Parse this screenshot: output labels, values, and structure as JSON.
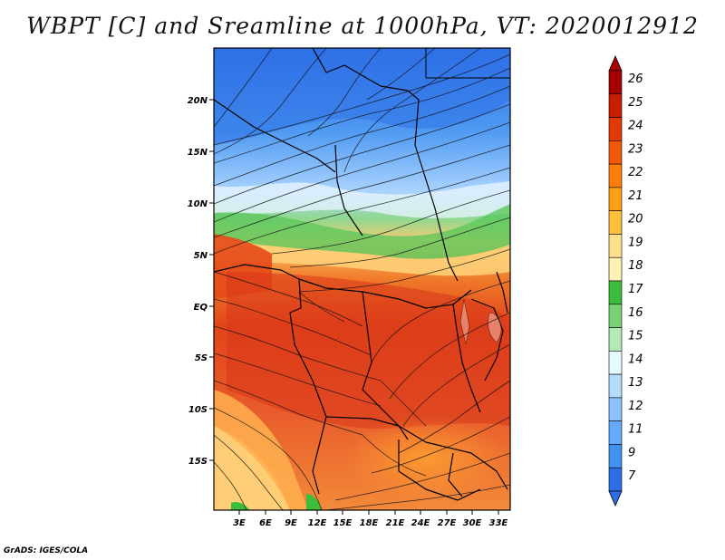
{
  "title": "WBPT [C] and Sreamline at 1000hPa, VT: 2020012912",
  "credit": "GrADS: IGES/COLA",
  "map": {
    "lat_labels": [
      "20N",
      "15N",
      "10N",
      "5N",
      "EQ",
      "5S",
      "10S",
      "15S"
    ],
    "lon_labels": [
      "3E",
      "6E",
      "9E",
      "12E",
      "15E",
      "18E",
      "21E",
      "24E",
      "27E",
      "30E",
      "33E"
    ]
  },
  "colorbar": {
    "levels": [
      "26",
      "25",
      "24",
      "23",
      "22",
      "21",
      "20",
      "19",
      "18",
      "17",
      "16",
      "15",
      "14",
      "13",
      "12",
      "11",
      "9",
      "7"
    ],
    "colors": [
      "#a50000",
      "#c81e00",
      "#e03a05",
      "#f25a0a",
      "#ff7d0a",
      "#ffa014",
      "#ffc03c",
      "#ffe08c",
      "#fff0b4",
      "#3cbe3c",
      "#78d278",
      "#b4ebb4",
      "#e6faff",
      "#b4dcff",
      "#8cc3ff",
      "#64aaff",
      "#4191f0",
      "#2d6ee6"
    ]
  },
  "chart_data": {
    "type": "heatmap",
    "title": "WBPT [C] and Sreamline at 1000hPa, VT: 2020012912",
    "variable": "Wet-bulb potential temperature [C] with streamlines at 1000hPa",
    "valid_time": "2020012912",
    "x_ticks": [
      "3E",
      "6E",
      "9E",
      "12E",
      "15E",
      "18E",
      "21E",
      "24E",
      "27E",
      "30E",
      "33E"
    ],
    "y_ticks": [
      "20N",
      "15N",
      "10N",
      "5N",
      "EQ",
      "5S",
      "10S",
      "15S"
    ],
    "xlim": [
      0,
      34
    ],
    "ylim": [
      -20,
      24
    ],
    "colorbar_levels": [
      7,
      9,
      11,
      12,
      13,
      14,
      15,
      16,
      17,
      18,
      19,
      20,
      21,
      22,
      23,
      24,
      25,
      26
    ]
  }
}
